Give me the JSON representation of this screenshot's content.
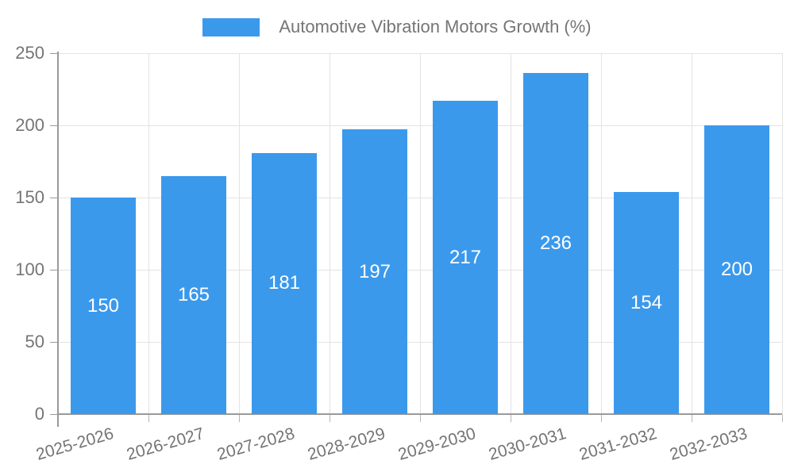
{
  "chart_data": {
    "type": "bar",
    "title": "Automotive Vibration Motors Growth (%)",
    "categories": [
      "2025-2026",
      "2026-2027",
      "2027-2028",
      "2028-2029",
      "2029-2030",
      "2030-2031",
      "2031-2032",
      "2032-2033"
    ],
    "values": [
      150,
      165,
      181,
      197,
      217,
      236,
      154,
      200
    ],
    "value_labels": [
      "150",
      "165",
      "181",
      "197",
      "217",
      "236",
      "154",
      "200"
    ],
    "ytick_labels": [
      "0",
      "50",
      "100",
      "150",
      "200",
      "250"
    ],
    "yticks": [
      0,
      50,
      100,
      150,
      200,
      250
    ],
    "ylim": [
      0,
      250
    ],
    "xlabel": "",
    "ylabel": "",
    "legend_position": "top",
    "legend_entries": [
      "Automotive Vibration Motors Growth (%)"
    ],
    "grid": true,
    "colors": {
      "bar": "#3b99ec",
      "bar_value_text": "#ffffff",
      "gridline": "#e3e3e3",
      "axis_line": "#9a9a9a",
      "axis_text": "#757575",
      "background": "#ffffff"
    }
  }
}
